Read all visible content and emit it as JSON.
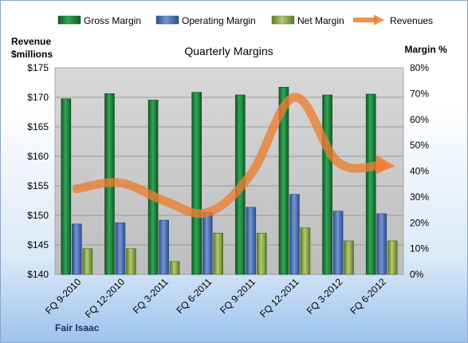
{
  "chart_data": {
    "type": "bar",
    "title": "Quarterly Margins",
    "company": "Fair Isaac",
    "categories": [
      "FQ 9-2010",
      "FQ 12-2010",
      "FQ 3-2011",
      "FQ 6-2011",
      "FQ 9-2011",
      "FQ 12-2011",
      "FQ 3-2012",
      "FQ 6-2012"
    ],
    "series": [
      {
        "name": "Gross Margin",
        "axis": "right",
        "color": "#1f7a3a",
        "values": [
          68,
          70,
          67.5,
          70.5,
          69.5,
          72.5,
          69.5,
          69.8
        ]
      },
      {
        "name": "Operating Margin",
        "axis": "right",
        "color": "#4a6fb0",
        "values": [
          19.5,
          20,
          21,
          24,
          26,
          31,
          24.5,
          23.5
        ]
      },
      {
        "name": "Net Margin",
        "axis": "right",
        "color": "#8aa84a",
        "values": [
          10,
          10,
          5,
          16,
          16,
          18,
          13,
          13
        ]
      },
      {
        "name": "Revenues",
        "axis": "left",
        "type": "line",
        "color": "#ed7d31",
        "values": [
          154.5,
          155.5,
          152.5,
          150.5,
          157,
          170,
          159,
          158.5
        ]
      }
    ],
    "left_axis": {
      "label_line1": "Revenue",
      "label_line2": "$millions",
      "min": 140,
      "max": 175,
      "step": 5,
      "ticks": [
        "$140",
        "$145",
        "$150",
        "$155",
        "$160",
        "$165",
        "$170",
        "$175"
      ]
    },
    "right_axis": {
      "label": "Margin %",
      "min": 0,
      "max": 80,
      "step": 10,
      "ticks": [
        "0%",
        "10%",
        "20%",
        "30%",
        "40%",
        "50%",
        "60%",
        "70%",
        "80%"
      ]
    },
    "legend_position": "top",
    "grid": true
  }
}
